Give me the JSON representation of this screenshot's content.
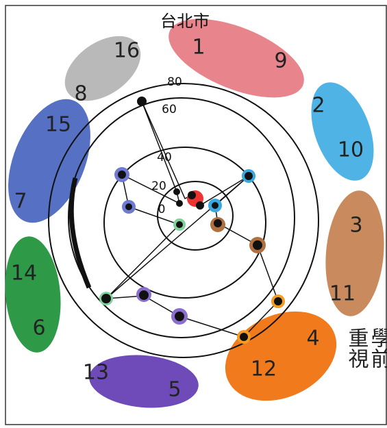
{
  "title": "台北市",
  "rings": [
    "80",
    "60",
    "40",
    "20",
    "0"
  ],
  "ovals": [
    {
      "top": "16",
      "bottom": "8"
    },
    {
      "top": "1",
      "bottom": "9"
    },
    {
      "top": "2",
      "bottom": "10"
    },
    {
      "top": "3",
      "bottom": "11"
    },
    {
      "top": "4",
      "bottom": "12"
    },
    {
      "top": "13",
      "bottom": "5"
    },
    {
      "top": "14",
      "bottom": "6"
    },
    {
      "top": "15",
      "bottom": "7"
    }
  ],
  "side_text": [
    "重視",
    "學前"
  ]
}
